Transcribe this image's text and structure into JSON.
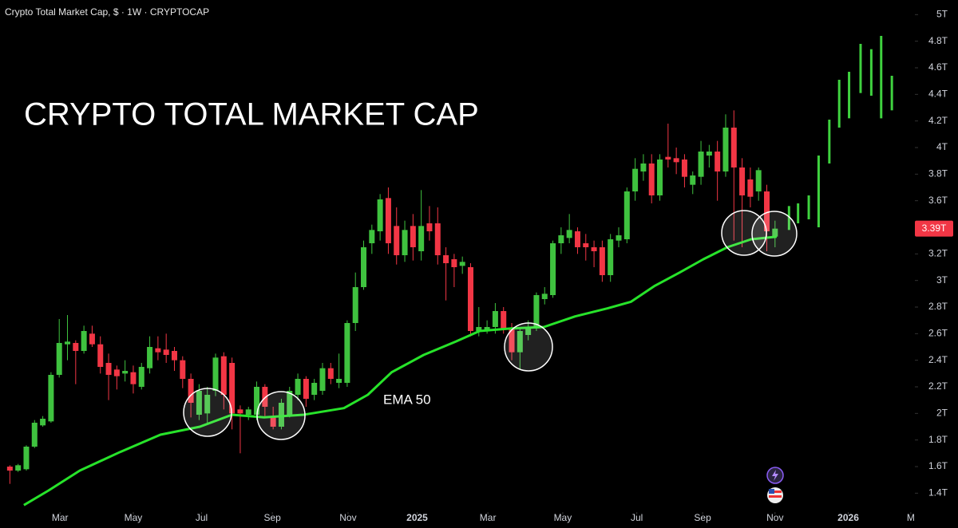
{
  "chart_data": {
    "type": "candlestick",
    "header": "Crypto Total Market Cap, $ · 1W · CRYPTOCAP",
    "title": "CRYPTO TOTAL MARKET CAP",
    "up_color": "#3fc23f",
    "down_color": "#f23645",
    "x": [
      0,
      1,
      2,
      3,
      4,
      5,
      6,
      7,
      8,
      9,
      10,
      11,
      12,
      13,
      14,
      15,
      16,
      17,
      18,
      19,
      20,
      21,
      22,
      23,
      24,
      25,
      26,
      27,
      28,
      29,
      30,
      31,
      32,
      33,
      34,
      35,
      36,
      37,
      38,
      39,
      40,
      41,
      42,
      43,
      44,
      45,
      46,
      47,
      48,
      49,
      50,
      51,
      52,
      53,
      54,
      55,
      56,
      57,
      58,
      59,
      60,
      61,
      62,
      63,
      64,
      65,
      66,
      67,
      68,
      69,
      70,
      71,
      72,
      73,
      74,
      75,
      76,
      77,
      78,
      79,
      80,
      81,
      82,
      83,
      84,
      85,
      86,
      87,
      88,
      89,
      90,
      91,
      92,
      93
    ],
    "open": [
      1.6,
      1.57,
      1.58,
      1.75,
      1.91,
      1.94,
      2.29,
      2.52,
      2.53,
      2.47,
      2.6,
      2.52,
      2.38,
      2.33,
      2.3,
      2.31,
      2.2,
      2.34,
      2.49,
      2.48,
      2.47,
      2.4,
      2.26,
      1.99,
      2.0,
      2.17,
      2.43,
      2.38,
      2.03,
      1.99,
      1.99,
      2.2,
      1.98,
      1.9,
      1.99,
      2.14,
      2.26,
      2.14,
      2.17,
      2.34,
      2.23,
      2.23,
      2.68,
      2.95,
      3.28,
      3.37,
      3.62,
      3.41,
      3.19,
      3.41,
      3.22,
      3.43,
      3.43,
      3.19,
      3.16,
      3.11,
      3.1,
      2.62,
      2.62,
      2.65,
      2.77,
      2.64,
      2.46,
      2.59,
      2.64,
      2.86,
      2.89,
      3.28,
      3.32,
      3.37,
      3.28,
      3.25,
      3.25,
      3.04,
      3.3,
      3.31,
      3.67,
      3.82,
      3.88,
      3.64,
      3.93,
      3.92,
      3.91,
      3.72,
      3.78,
      3.94,
      3.97,
      3.82,
      4.15,
      3.85,
      3.76,
      3.67,
      3.67,
      3.33
    ],
    "high": [
      1.61,
      1.62,
      1.76,
      1.95,
      1.98,
      2.31,
      2.71,
      2.74,
      2.55,
      2.66,
      2.66,
      2.58,
      2.45,
      2.36,
      2.4,
      2.36,
      2.38,
      2.58,
      2.58,
      2.6,
      2.5,
      2.43,
      2.3,
      2.22,
      2.2,
      2.45,
      2.46,
      2.42,
      2.06,
      2.05,
      2.24,
      2.22,
      2.05,
      2.11,
      2.2,
      2.3,
      2.28,
      2.26,
      2.38,
      2.38,
      2.45,
      2.7,
      3.06,
      3.3,
      3.42,
      3.65,
      3.7,
      3.55,
      3.45,
      3.5,
      3.68,
      3.56,
      3.55,
      3.25,
      3.2,
      3.18,
      3.13,
      2.8,
      2.7,
      2.83,
      2.8,
      2.68,
      2.65,
      2.7,
      2.91,
      2.95,
      3.3,
      3.4,
      3.5,
      3.4,
      3.35,
      3.3,
      3.3,
      3.35,
      3.4,
      3.7,
      3.92,
      3.95,
      3.95,
      3.95,
      4.18,
      4.0,
      3.95,
      3.82,
      4.05,
      4.02,
      4.05,
      4.25,
      4.28,
      3.92,
      3.85,
      3.85,
      3.72,
      3.45
    ],
    "low": [
      1.47,
      1.56,
      1.57,
      1.74,
      1.9,
      1.93,
      2.27,
      2.4,
      2.22,
      2.45,
      2.5,
      2.3,
      2.1,
      2.18,
      2.24,
      2.15,
      2.18,
      2.3,
      2.4,
      2.38,
      2.32,
      2.19,
      1.97,
      1.95,
      1.93,
      2.13,
      2.03,
      1.88,
      1.7,
      1.95,
      1.95,
      1.98,
      1.88,
      1.88,
      1.97,
      2.1,
      2.05,
      2.1,
      2.14,
      2.22,
      2.19,
      2.2,
      2.62,
      2.93,
      3.2,
      3.3,
      3.2,
      3.12,
      3.14,
      3.15,
      3.15,
      3.3,
      3.12,
      2.85,
      2.95,
      3.05,
      2.58,
      2.58,
      2.6,
      2.6,
      2.6,
      2.4,
      2.33,
      2.55,
      2.62,
      2.82,
      2.87,
      3.2,
      3.28,
      3.2,
      3.15,
      3.1,
      2.99,
      2.99,
      3.25,
      3.28,
      3.6,
      3.75,
      3.58,
      3.6,
      3.85,
      3.8,
      3.7,
      3.65,
      3.72,
      3.85,
      3.6,
      3.78,
      3.3,
      3.25,
      3.55,
      3.6,
      3.22,
      3.25
    ],
    "close": [
      1.57,
      1.61,
      1.75,
      1.93,
      1.96,
      2.29,
      2.53,
      2.54,
      2.47,
      2.62,
      2.52,
      2.35,
      2.29,
      2.28,
      2.32,
      2.22,
      2.35,
      2.5,
      2.46,
      2.44,
      2.4,
      2.26,
      2.08,
      2.17,
      2.14,
      2.42,
      2.14,
      2.0,
      2.0,
      2.03,
      2.2,
      2.05,
      1.9,
      2.08,
      2.17,
      2.26,
      2.11,
      2.23,
      2.34,
      2.26,
      2.26,
      2.68,
      2.95,
      3.25,
      3.38,
      3.61,
      3.28,
      3.19,
      3.38,
      3.25,
      3.41,
      3.37,
      3.19,
      3.13,
      3.1,
      3.14,
      2.62,
      2.65,
      2.65,
      2.77,
      2.64,
      2.46,
      2.62,
      2.64,
      2.89,
      2.9,
      3.28,
      3.34,
      3.38,
      3.25,
      3.25,
      3.22,
      3.04,
      3.31,
      3.34,
      3.67,
      3.84,
      3.88,
      3.64,
      3.91,
      3.91,
      3.89,
      3.78,
      3.79,
      3.97,
      3.97,
      3.82,
      4.15,
      3.85,
      3.64,
      3.63,
      3.83,
      3.37,
      3.39
    ],
    "ema": {
      "name": "EMA 50",
      "color": "#27e32a",
      "x": [
        1.7,
        4.7,
        8.5,
        13.4,
        18.3,
        23.1,
        27.0,
        30.9,
        35.7,
        40.6,
        43.5,
        46.4,
        50.3,
        54.2,
        57.1,
        61.0,
        64.9,
        68.7,
        72.6,
        75.5,
        78.4,
        81.4,
        84.3,
        87.2,
        90.1,
        93.2
      ],
      "values": [
        1.31,
        1.42,
        1.57,
        1.71,
        1.84,
        1.9,
        1.99,
        1.97,
        1.99,
        2.04,
        2.14,
        2.31,
        2.44,
        2.54,
        2.62,
        2.64,
        2.65,
        2.73,
        2.79,
        2.84,
        2.96,
        3.06,
        3.16,
        3.25,
        3.31,
        3.33
      ]
    },
    "projection": {
      "color": "#3fd23f",
      "x": [
        94.7,
        95.8,
        97.1,
        98.3,
        99.6,
        100.8,
        102.0,
        103.4,
        104.7,
        105.9,
        107.2
      ],
      "low": [
        3.38,
        3.43,
        3.46,
        3.4,
        3.88,
        4.15,
        4.22,
        4.41,
        4.39,
        4.22,
        4.28
      ],
      "high": [
        3.56,
        3.58,
        3.64,
        3.94,
        4.21,
        4.51,
        4.57,
        4.78,
        4.74,
        4.84,
        4.54
      ]
    },
    "last_price": {
      "value": 3.39,
      "label": "3.39T"
    },
    "xlim": [
      -1.2,
      110
    ],
    "ylim": [
      1.27,
      5.11
    ],
    "xticks": [
      {
        "value": 6.1,
        "label": "Mar"
      },
      {
        "value": 15.0,
        "label": "May"
      },
      {
        "value": 23.3,
        "label": "Jul"
      },
      {
        "value": 31.9,
        "label": "Sep"
      },
      {
        "value": 41.1,
        "label": "Nov"
      },
      {
        "value": 49.5,
        "label": "2025"
      },
      {
        "value": 58.1,
        "label": "Mar"
      },
      {
        "value": 67.2,
        "label": "May"
      },
      {
        "value": 76.2,
        "label": "Jul"
      },
      {
        "value": 84.2,
        "label": "Sep"
      },
      {
        "value": 93.0,
        "label": "Nov"
      },
      {
        "value": 101.9,
        "label": "2026"
      },
      {
        "value": 109.5,
        "label": "M"
      }
    ],
    "yticks": [
      {
        "value": 1.4,
        "label": "1.4T"
      },
      {
        "value": 1.6,
        "label": "1.6T"
      },
      {
        "value": 1.8,
        "label": "1.8T"
      },
      {
        "value": 2,
        "label": "2T"
      },
      {
        "value": 2.2,
        "label": "2.2T"
      },
      {
        "value": 2.4,
        "label": "2.4T"
      },
      {
        "value": 2.6,
        "label": "2.6T"
      },
      {
        "value": 2.8,
        "label": "2.8T"
      },
      {
        "value": 3,
        "label": "3T"
      },
      {
        "value": 3.2,
        "label": "3.2T"
      },
      {
        "value": 3.6,
        "label": "3.6T"
      },
      {
        "value": 3.8,
        "label": "3.8T"
      },
      {
        "value": 4,
        "label": "4T"
      },
      {
        "value": 4.2,
        "label": "4.2T"
      },
      {
        "value": 4.4,
        "label": "4.4T"
      },
      {
        "value": 4.6,
        "label": "4.6T"
      },
      {
        "value": 4.8,
        "label": "4.8T"
      },
      {
        "value": 5,
        "label": "5T"
      }
    ]
  }
}
